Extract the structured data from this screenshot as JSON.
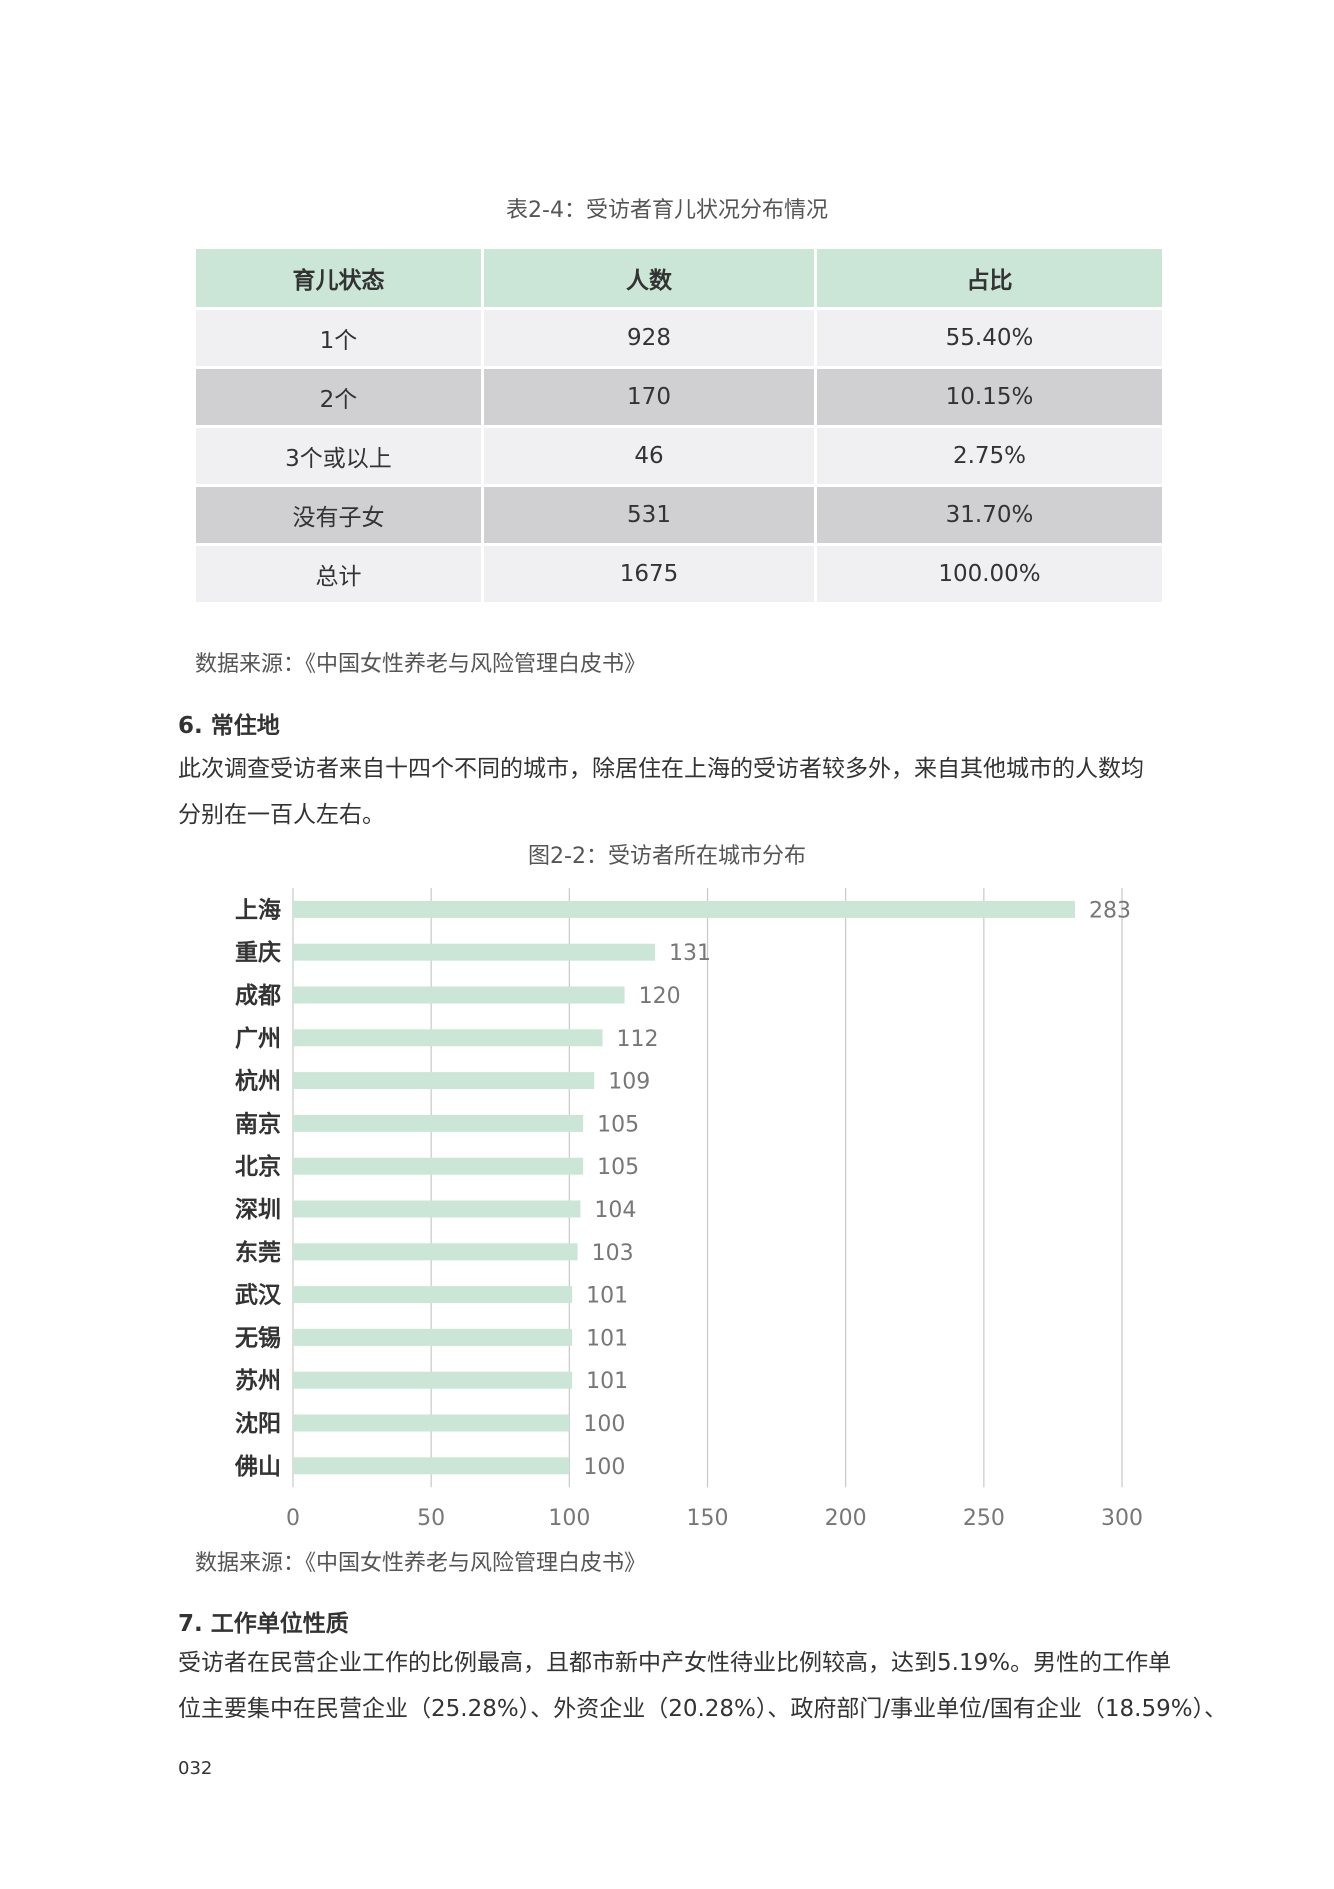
{
  "table": {
    "caption": "表2-4：受访者育儿状况分布情况",
    "headers": [
      "育儿状态",
      "人数",
      "占比"
    ],
    "rows": [
      [
        "1个",
        "928",
        "55.40%"
      ],
      [
        "2个",
        "170",
        "10.15%"
      ],
      [
        "3个或以上",
        "46",
        "2.75%"
      ],
      [
        "没有子女",
        "531",
        "31.70%"
      ],
      [
        "总计",
        "1675",
        "100.00%"
      ]
    ],
    "source": "数据来源：《中国女性养老与风险管理白皮书》"
  },
  "section6": {
    "heading": "6. 常住地",
    "paragraph_lines": [
      "此次调查受访者来自十四个不同的城市，除居住在上海的受访者较多外，来自其他城市的人数均",
      "分别在一百人左右。"
    ]
  },
  "chart_data": {
    "type": "bar",
    "orientation": "horizontal",
    "title": "图2-2：受访者所在城市分布",
    "categories": [
      "上海",
      "重庆",
      "成都",
      "广州",
      "杭州",
      "南京",
      "北京",
      "深圳",
      "东莞",
      "武汉",
      "无锡",
      "苏州",
      "沈阳",
      "佛山"
    ],
    "values": [
      283,
      131,
      120,
      112,
      109,
      105,
      105,
      104,
      103,
      101,
      101,
      101,
      100,
      100
    ],
    "xlim": [
      0,
      300
    ],
    "xticks": [
      0,
      50,
      100,
      150,
      200,
      250,
      300
    ],
    "grid": true,
    "bar_color": "#cbe6d6",
    "source": "数据来源：《中国女性养老与风险管理白皮书》"
  },
  "section7": {
    "heading": "7. 工作单位性质",
    "paragraph_lines": [
      "受访者在民营企业工作的比例最高，且都市新中产女性待业比例较高，达到5.19%。男性的工作单",
      "位主要集中在民营企业（25.28%）、外资企业（20.28%）、政府部门/事业单位/国有企业（18.59%）、"
    ]
  },
  "page_number": "032"
}
